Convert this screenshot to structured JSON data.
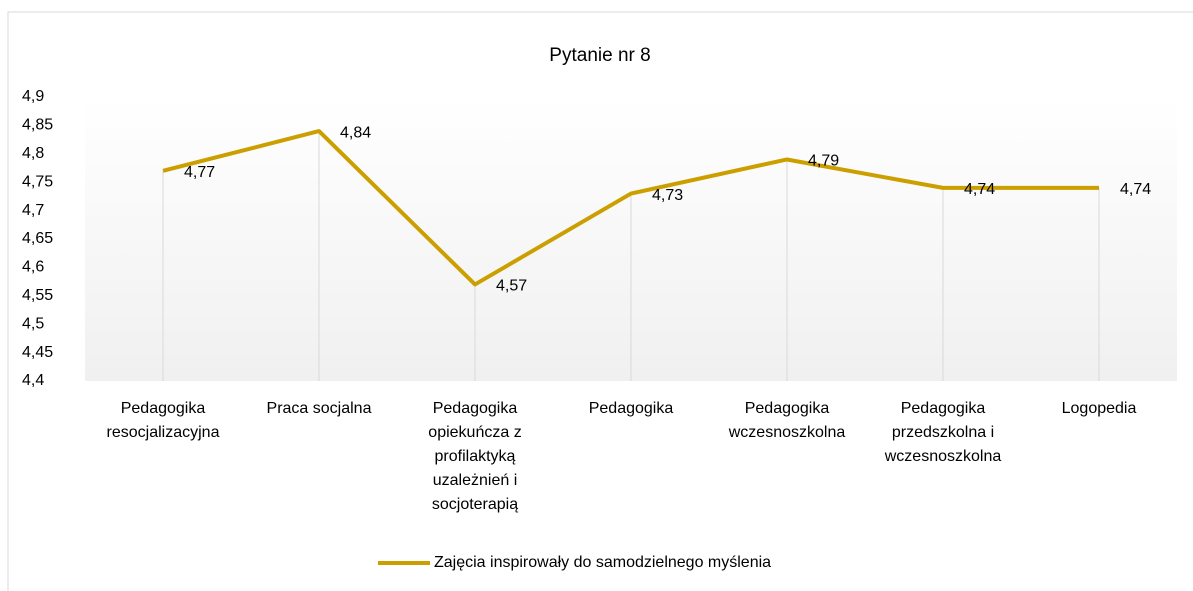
{
  "chart_data": {
    "type": "line",
    "title": "Pytanie nr 8",
    "categories": [
      "Pedagogika resocjalizacyjna",
      "Praca socjalna",
      "Pedagogika opiekuńcza z profilaktyką uzależnień i socjoterapią",
      "Pedagogika",
      "Pedagogika wczesnoszkolna",
      "Pedagogika przedszkolna i wczesnoszkolna",
      "Logopedia"
    ],
    "series": [
      {
        "name": "Zajęcia inspirowały do samodzielnego myślenia",
        "color": "#cc9f00",
        "values": [
          4.77,
          4.84,
          4.57,
          4.73,
          4.79,
          4.74,
          4.74
        ],
        "value_labels": [
          "4,77",
          "4,84",
          "4,57",
          "4,73",
          "4,79",
          "4,74",
          "4,74"
        ]
      }
    ],
    "ylim": [
      4.4,
      4.9
    ],
    "yticks": [
      {
        "value": 4.4,
        "label": "4,4"
      },
      {
        "value": 4.45,
        "label": "4,45"
      },
      {
        "value": 4.5,
        "label": "4,5"
      },
      {
        "value": 4.55,
        "label": "4,55"
      },
      {
        "value": 4.6,
        "label": "4,6"
      },
      {
        "value": 4.65,
        "label": "4,65"
      },
      {
        "value": 4.7,
        "label": "4,7"
      },
      {
        "value": 4.75,
        "label": "4,75"
      },
      {
        "value": 4.8,
        "label": "4,8"
      },
      {
        "value": 4.85,
        "label": "4,85"
      },
      {
        "value": 4.9,
        "label": "4,9"
      }
    ],
    "legend": "bottom"
  }
}
